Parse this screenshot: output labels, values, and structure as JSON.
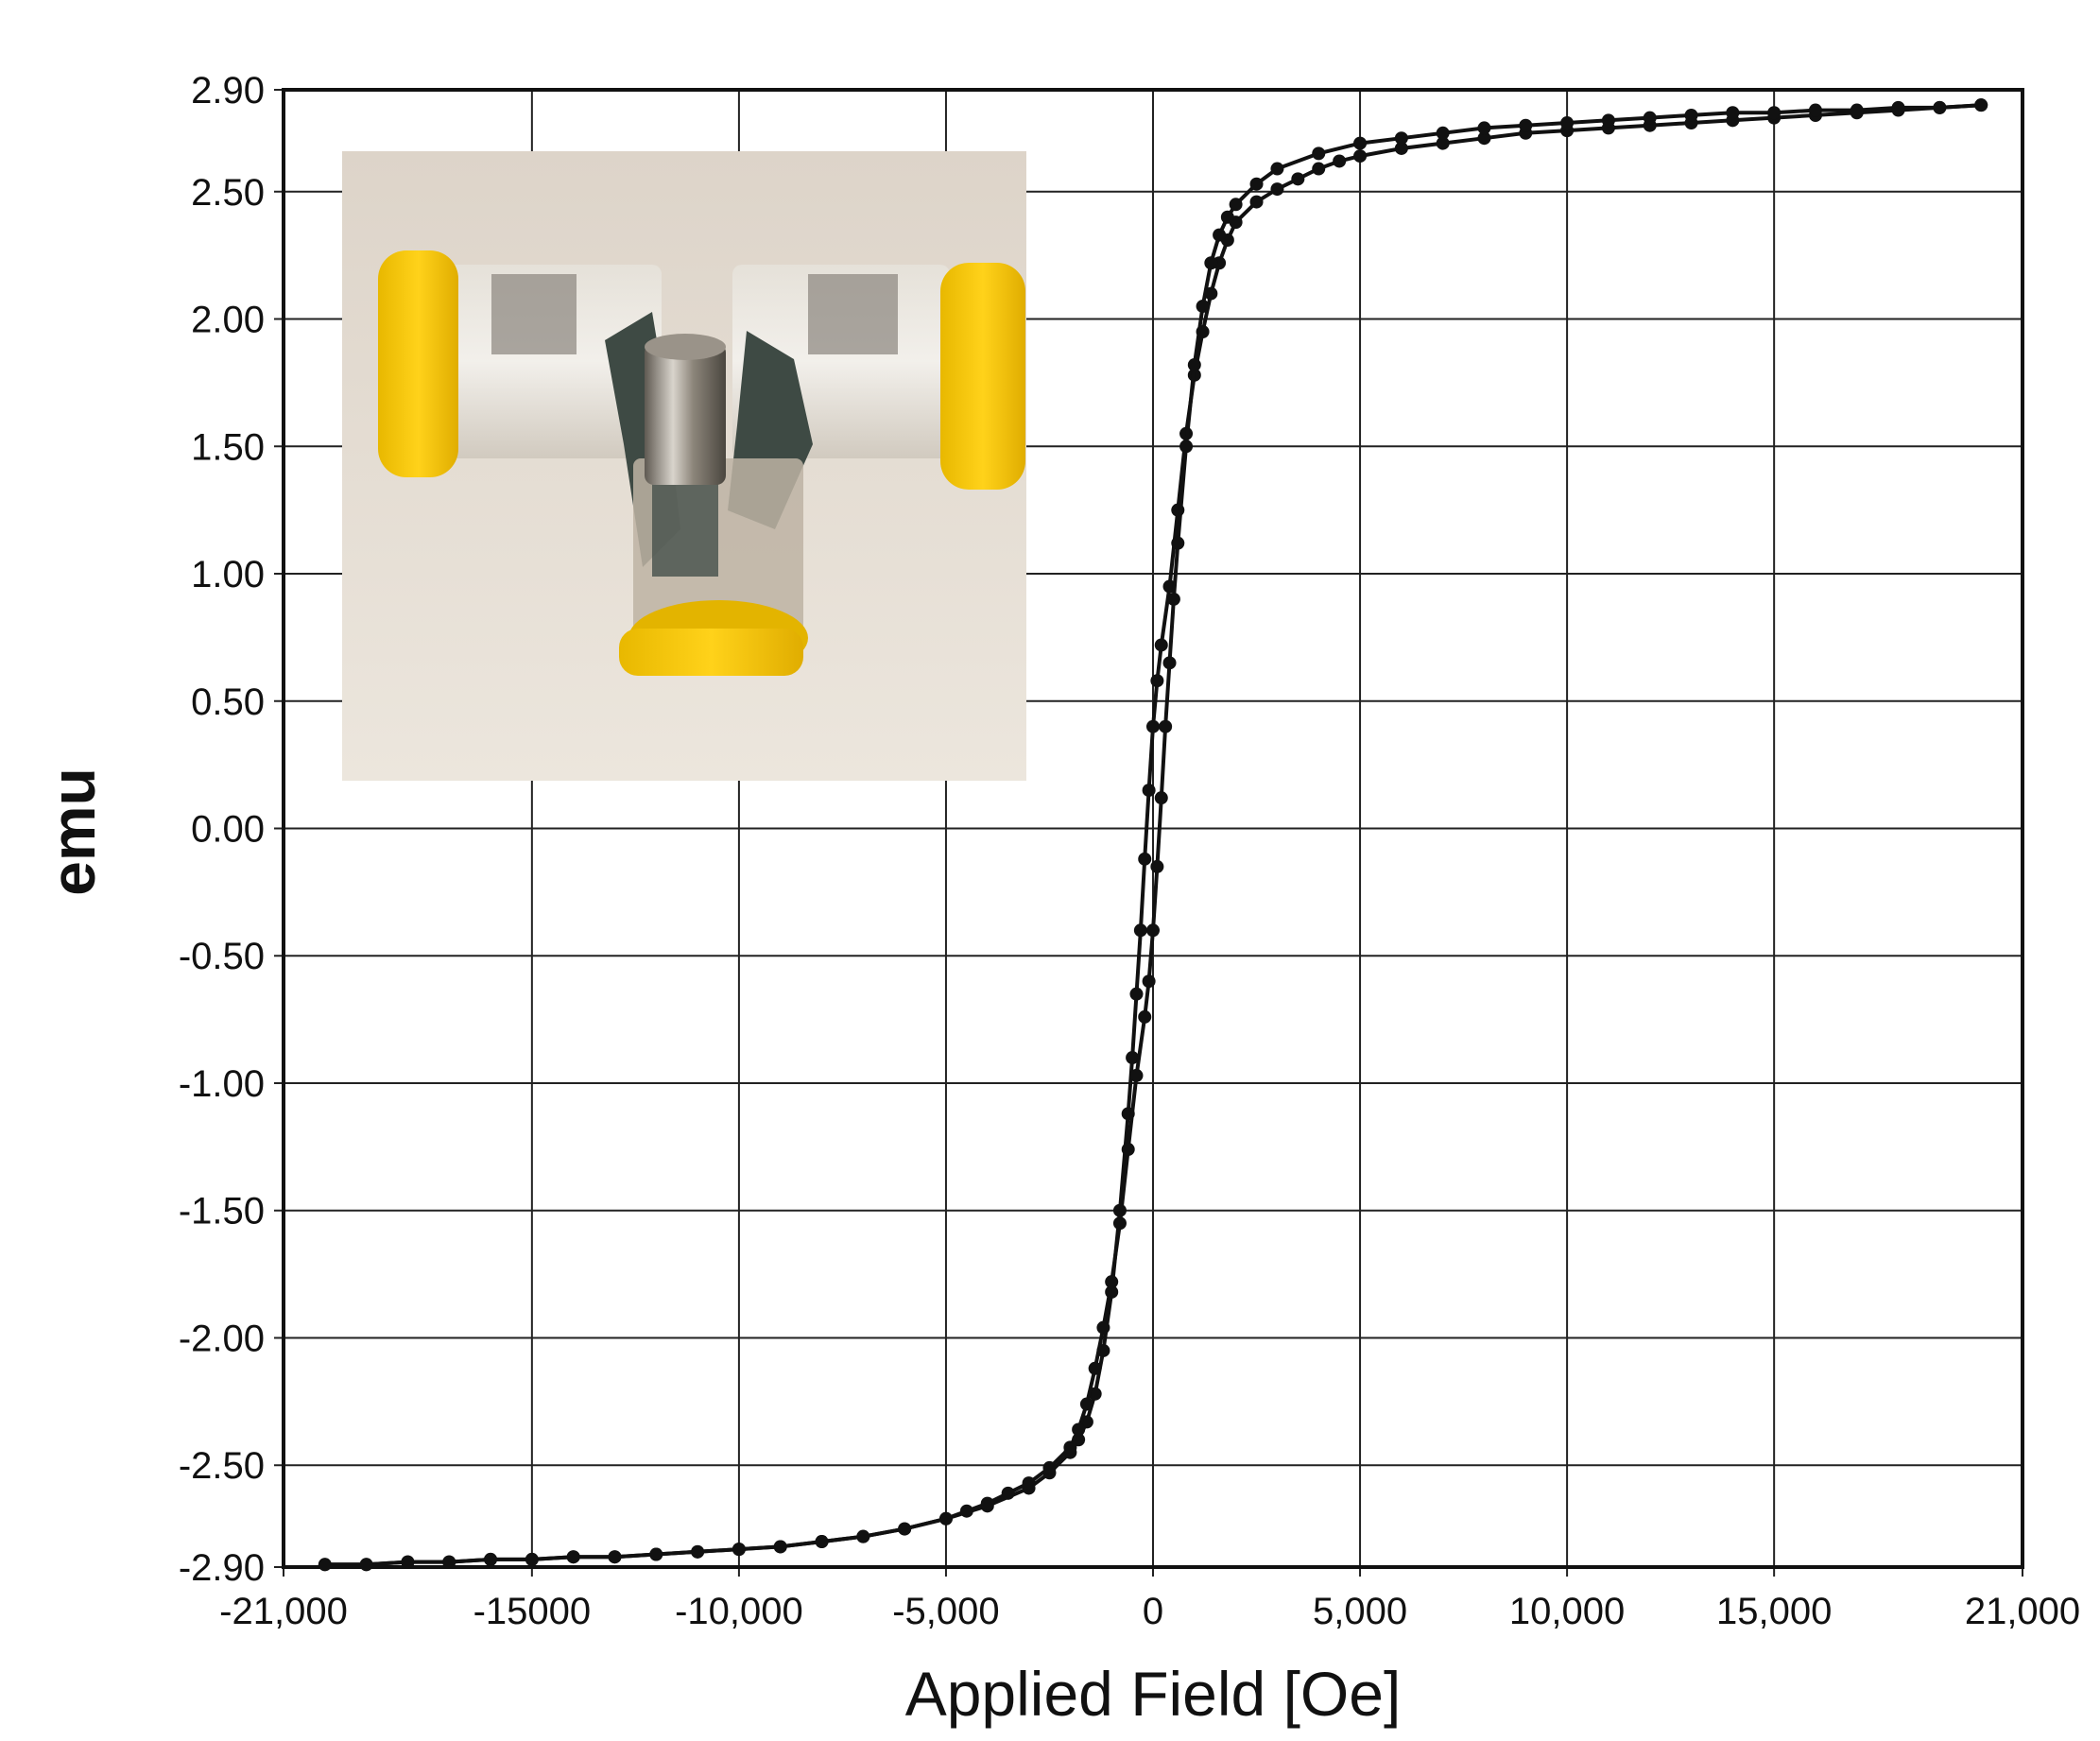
{
  "chart_data": {
    "type": "line",
    "title": "",
    "xlabel": "Applied Field [Oe]",
    "ylabel": "emu",
    "xlim": [
      -21000,
      21000
    ],
    "ylim": [
      -2.9,
      2.9
    ],
    "x_ticks": [
      -21000,
      -15000,
      -10000,
      -5000,
      0,
      5000,
      10000,
      15000,
      21000
    ],
    "x_tick_labels": [
      "-21,000",
      "-15000",
      "-10,000",
      "-5,000",
      "0",
      "5,000",
      "10,000",
      "15,000",
      "21,000"
    ],
    "y_ticks": [
      2.9,
      2.5,
      2.0,
      1.5,
      1.0,
      0.5,
      0.0,
      -0.5,
      -1.0,
      -1.5,
      -2.0,
      -2.5,
      -2.9
    ],
    "y_tick_labels": [
      "2.90",
      "2.50",
      "2.00",
      "1.50",
      "1.00",
      "0.50",
      "0.00",
      "-0.50",
      "-1.00",
      "-1.50",
      "-2.00",
      "-2.50",
      "-2.90"
    ],
    "grid": true,
    "legend": "none",
    "series": [
      {
        "x": [
          20000,
          19000,
          18000,
          17000,
          16000,
          15000,
          14000,
          13000,
          12000,
          11000,
          10000,
          9000,
          8000,
          7000,
          6000,
          5000,
          4500,
          4000,
          3500,
          3000,
          2500,
          2000,
          1800,
          1600,
          1400,
          1200,
          1000,
          800,
          600,
          400,
          200,
          100,
          0,
          -100,
          -200,
          -300,
          -400,
          -500,
          -600,
          -800,
          -1000,
          -1200,
          -1400,
          -1600,
          -1800,
          -2000,
          -2500,
          -3000,
          -4000,
          -5000,
          -6000,
          -7000,
          -8000,
          -9000,
          -10000,
          -11000,
          -12000,
          -13000,
          -14000,
          -15000,
          -16000,
          -17000,
          -18000,
          -19000,
          -20000
        ],
        "y": [
          2.84,
          2.83,
          2.82,
          2.81,
          2.8,
          2.79,
          2.78,
          2.77,
          2.76,
          2.75,
          2.74,
          2.73,
          2.71,
          2.69,
          2.67,
          2.64,
          2.62,
          2.59,
          2.55,
          2.51,
          2.46,
          2.38,
          2.31,
          2.22,
          2.1,
          1.95,
          1.78,
          1.55,
          1.25,
          0.95,
          0.72,
          0.58,
          0.4,
          0.15,
          -0.12,
          -0.4,
          -0.65,
          -0.9,
          -1.12,
          -1.5,
          -1.82,
          -2.05,
          -2.22,
          -2.33,
          -2.4,
          -2.45,
          -2.53,
          -2.59,
          -2.66,
          -2.71,
          -2.75,
          -2.78,
          -2.8,
          -2.82,
          -2.83,
          -2.84,
          -2.85,
          -2.86,
          -2.86,
          -2.87,
          -2.87,
          -2.88,
          -2.88,
          -2.89,
          -2.89
        ]
      },
      {
        "x": [
          -20000,
          -19000,
          -18000,
          -17000,
          -16000,
          -15000,
          -14000,
          -13000,
          -12000,
          -11000,
          -10000,
          -9000,
          -8000,
          -7000,
          -6000,
          -5000,
          -4500,
          -4000,
          -3500,
          -3000,
          -2500,
          -2000,
          -1800,
          -1600,
          -1400,
          -1200,
          -1000,
          -800,
          -600,
          -400,
          -200,
          -100,
          0,
          100,
          200,
          300,
          400,
          500,
          600,
          800,
          1000,
          1200,
          1400,
          1600,
          1800,
          2000,
          2500,
          3000,
          4000,
          5000,
          6000,
          7000,
          8000,
          9000,
          10000,
          11000,
          12000,
          13000,
          14000,
          15000,
          16000,
          17000,
          18000,
          19000,
          20000
        ],
        "y": [
          -2.89,
          -2.89,
          -2.88,
          -2.88,
          -2.87,
          -2.87,
          -2.86,
          -2.86,
          -2.85,
          -2.84,
          -2.83,
          -2.82,
          -2.8,
          -2.78,
          -2.75,
          -2.71,
          -2.68,
          -2.65,
          -2.61,
          -2.57,
          -2.51,
          -2.43,
          -2.36,
          -2.26,
          -2.12,
          -1.96,
          -1.78,
          -1.55,
          -1.26,
          -0.97,
          -0.74,
          -0.6,
          -0.4,
          -0.15,
          0.12,
          0.4,
          0.65,
          0.9,
          1.12,
          1.5,
          1.82,
          2.05,
          2.22,
          2.33,
          2.4,
          2.45,
          2.53,
          2.59,
          2.65,
          2.69,
          2.71,
          2.73,
          2.75,
          2.76,
          2.77,
          2.78,
          2.79,
          2.8,
          2.81,
          2.81,
          2.82,
          2.82,
          2.83,
          2.83,
          2.84
        ]
      }
    ]
  }
}
